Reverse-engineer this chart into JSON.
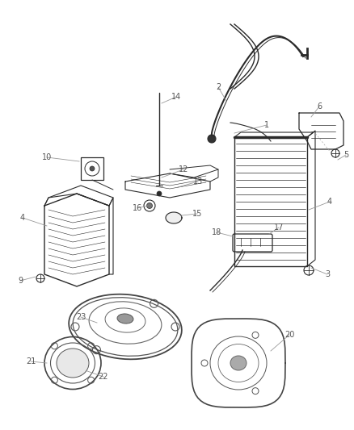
{
  "bg_color": "#ffffff",
  "line_color": "#2a2a2a",
  "label_color": "#5a5a5a",
  "fig_width": 4.38,
  "fig_height": 5.33,
  "dpi": 100
}
